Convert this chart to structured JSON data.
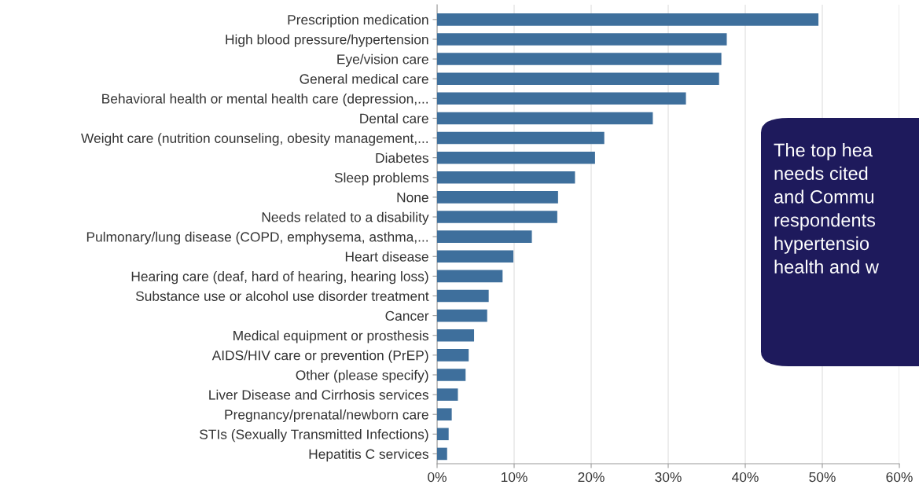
{
  "chart_data": {
    "type": "bar",
    "orientation": "horizontal",
    "categories": [
      "Prescription medication",
      "High blood pressure/hypertension",
      "Eye/vision care",
      "General medical care",
      "Behavioral health or mental health care (depression,...",
      "Dental care",
      "Weight care (nutrition counseling, obesity management,...",
      "Diabetes",
      "Sleep problems",
      "None",
      "Needs related to a disability",
      "Pulmonary/lung disease (COPD, emphysema, asthma,...",
      "Heart disease",
      "Hearing care (deaf, hard of hearing, hearing loss)",
      "Substance use or alcohol use disorder treatment",
      "Cancer",
      "Medical equipment or prosthesis",
      "AIDS/HIV care or prevention (PrEP)",
      "Other (please specify)",
      "Liver Disease and Cirrhosis services",
      "Pregnancy/prenatal/newborn care",
      "STIs (Sexually Transmitted Infections)",
      "Hepatitis C services"
    ],
    "values": [
      49.5,
      37.6,
      36.9,
      36.6,
      32.3,
      28.0,
      21.7,
      20.5,
      17.9,
      15.7,
      15.6,
      12.3,
      9.9,
      8.5,
      6.7,
      6.5,
      4.8,
      4.1,
      3.7,
      2.7,
      1.9,
      1.5,
      1.3
    ],
    "color": "#3e6f9c",
    "xlim": [
      0,
      60
    ],
    "xticks": [
      {
        "value": 0,
        "label": "0%"
      },
      {
        "value": 10,
        "label": "10%"
      },
      {
        "value": 20,
        "label": "20%"
      },
      {
        "value": 30,
        "label": "30%"
      },
      {
        "value": 40,
        "label": "40%"
      },
      {
        "value": 50,
        "label": "50%"
      },
      {
        "value": 60,
        "label": "60%"
      }
    ],
    "grid": "x",
    "annotations": [
      "The top hea\nneeds cited\nand Commu\nrespondents\nhypertensio\nhealth and w"
    ]
  }
}
